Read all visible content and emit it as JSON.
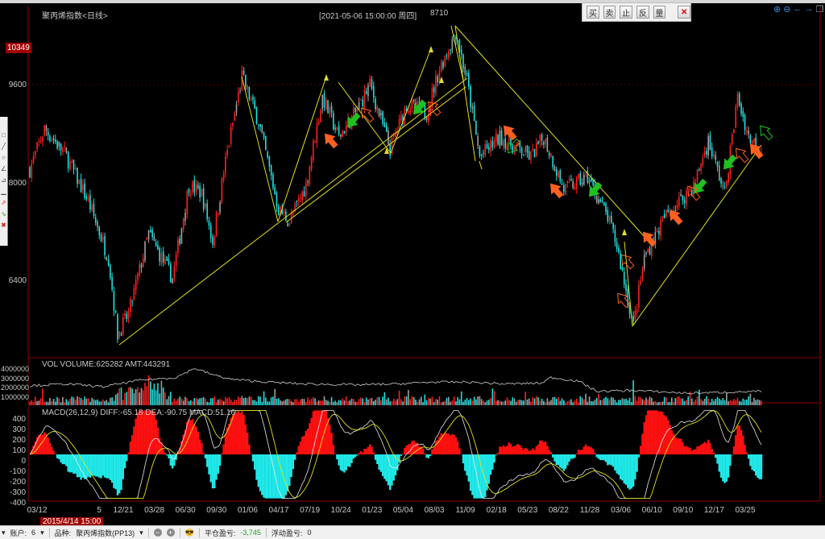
{
  "header": {
    "title": "聚丙烯指数<日线>",
    "cursor_info": "[2021-05-06  15:00:00 周四]",
    "cursor_value": "8710"
  },
  "price_tag": "10349",
  "trade_toolbar": {
    "buy": "买",
    "sell": "卖",
    "stop": "止",
    "reverse": "反",
    "quantity": "量",
    "close": "✕"
  },
  "nav_icons": [
    "zoom-in-icon",
    "zoom-out-icon",
    "arrow-left-icon",
    "arrow-right-icon",
    "restore-icon"
  ],
  "volume_panel": {
    "title": "VOL  VOLUME:625282 AMT:443291",
    "ylabels": [
      "4000000",
      "3000000",
      "2000000",
      "1000000"
    ]
  },
  "macd_panel": {
    "title": "MACD(26,12,9)  DIFF:-65.18 DEA:-90.75 MACD:51.16",
    "ylabels": [
      "400",
      "300",
      "200",
      "100",
      "0",
      "-100",
      "-200",
      "-300",
      "-400"
    ]
  },
  "time_tag": "2015/4/14 15:00",
  "status": {
    "account_label": "账户:",
    "account": "6",
    "symbol_label": "品种:",
    "symbol": "聚丙烯指数(PP13)",
    "closed_pl_label": "平仓盈亏:",
    "closed_pl": "-3,745",
    "float_pl_label": "浮动盈亏:",
    "float_pl": "0"
  },
  "colors": {
    "up": "#ff2020",
    "down": "#20e0e0",
    "trend": "#e0e020",
    "frame": "#8b0000",
    "buy_arrow": "#ff6020",
    "sell_arrow": "#20c020",
    "pl_negative": "#2a9a2a"
  },
  "chart_data": {
    "type": "candlestick",
    "title": "聚丙烯指数<日线>",
    "y_ticks": [
      9600,
      8000,
      6400
    ],
    "ylim": [
      5300,
      10600
    ],
    "x_labels": [
      "03/12",
      "5",
      "12/21",
      "03/28",
      "06/30",
      "09/30",
      "01/06",
      "04/17",
      "07/19",
      "10/24",
      "01/23",
      "05/04",
      "08/03",
      "11/09",
      "02/18",
      "05/23",
      "08/22",
      "11/28",
      "03/06",
      "06/10",
      "09/10",
      "12/17",
      "03/25"
    ],
    "bar_count": 400,
    "close_anchors": [
      [
        0,
        8217
      ],
      [
        8,
        8876
      ],
      [
        19,
        8481
      ],
      [
        32,
        7690
      ],
      [
        43,
        6768
      ],
      [
        48,
        5517
      ],
      [
        54,
        5847
      ],
      [
        65,
        7164
      ],
      [
        72,
        6768
      ],
      [
        78,
        6439
      ],
      [
        87,
        7954
      ],
      [
        94,
        7822
      ],
      [
        100,
        7032
      ],
      [
        107,
        8349
      ],
      [
        116,
        9732
      ],
      [
        125,
        9007
      ],
      [
        136,
        7559
      ],
      [
        142,
        7361
      ],
      [
        151,
        7954
      ],
      [
        160,
        9402
      ],
      [
        169,
        8744
      ],
      [
        178,
        9139
      ],
      [
        186,
        9600
      ],
      [
        197,
        8546
      ],
      [
        206,
        9271
      ],
      [
        217,
        9139
      ],
      [
        224,
        9863
      ],
      [
        233,
        10456
      ],
      [
        239,
        9666
      ],
      [
        246,
        8415
      ],
      [
        257,
        8744
      ],
      [
        274,
        8415
      ],
      [
        281,
        8744
      ],
      [
        292,
        7888
      ],
      [
        305,
        8086
      ],
      [
        316,
        7427
      ],
      [
        321,
        6966
      ],
      [
        330,
        5649
      ],
      [
        336,
        6768
      ],
      [
        347,
        7427
      ],
      [
        363,
        7954
      ],
      [
        371,
        8678
      ],
      [
        380,
        7822
      ],
      [
        387,
        9402
      ],
      [
        393,
        8744
      ],
      [
        400,
        8546
      ]
    ],
    "volume_ma_anchors": [
      [
        0,
        2100000
      ],
      [
        20,
        2300000
      ],
      [
        40,
        2000000
      ],
      [
        60,
        2700000
      ],
      [
        80,
        3000000
      ],
      [
        90,
        4000000
      ],
      [
        100,
        3300000
      ],
      [
        110,
        2800000
      ],
      [
        130,
        2500000
      ],
      [
        150,
        2300000
      ],
      [
        180,
        2200000
      ],
      [
        200,
        2300000
      ],
      [
        220,
        2500000
      ],
      [
        240,
        2500000
      ],
      [
        260,
        2300000
      ],
      [
        280,
        2400000
      ],
      [
        285,
        3000000
      ],
      [
        300,
        2600000
      ],
      [
        310,
        1500000
      ],
      [
        330,
        1600000
      ],
      [
        360,
        1300000
      ],
      [
        400,
        1500000
      ]
    ]
  }
}
